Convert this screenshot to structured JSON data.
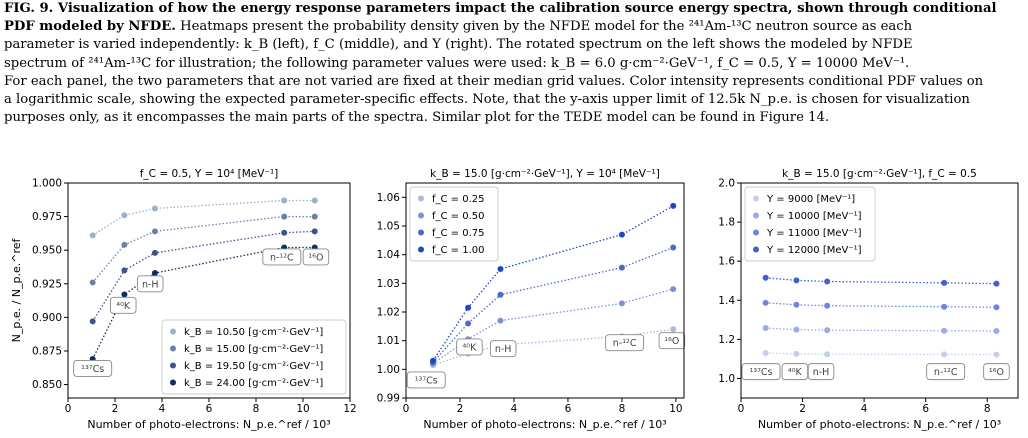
{
  "caption": {
    "line1": "FIG. 9. Visualization of how the energy response parameters impact the calibration source energy spectra, shown through conditional",
    "line2": "PDF modeled by NFDE.",
    "line2_rest": "Heatmaps present the probability density given by the NFDE model for the ²⁴¹Am-¹³C neutron source as each",
    "line3": "parameter is varied independently: k_B (left), f_C (middle), and Y (right). The rotated spectrum on the left shows the modeled by NFDE",
    "line4": "spectrum of ²⁴¹Am-¹³C for illustration; the following parameter values were used: k_B = 6.0 g·cm⁻²·GeV⁻¹, f_C = 0.5, Y = 10000 MeV⁻¹.",
    "line5": "For each panel, the two parameters that are not varied are fixed at their median grid values. Color intensity represents conditional PDF values on",
    "line6": "a logarithmic scale, showing the expected parameter-specific effects. Note, that the y-axis upper limit of 12.5k N_p.e. is chosen for visualization",
    "line7": "purposes only, as it encompasses the main parts of the spectra. Similar plot for the TEDE model can be found in Figure 14."
  },
  "chart_data": [
    {
      "type": "scatter",
      "title": "f_C = 0.5, Y = 10⁴ [MeV⁻¹]",
      "xlabel": "Number of photo-electrons: N_p.e.^ref / 10³",
      "ylabel": "N_p.e. / N_p.e.^ref",
      "xlim": [
        0,
        12
      ],
      "ylim": [
        0.84,
        1.0
      ],
      "xticks": [
        "0",
        "2",
        "4",
        "6",
        "8",
        "10",
        "12"
      ],
      "yticks": [
        "0.850",
        "0.875",
        "0.900",
        "0.925",
        "0.950",
        "0.975",
        "1.000"
      ],
      "x": [
        1.05,
        2.4,
        3.7,
        9.2,
        10.5
      ],
      "source_labels": [
        "¹³⁷Cs",
        "⁴⁰K",
        "n-H",
        "n-¹²C",
        "¹⁶O"
      ],
      "legend_position": "lower-right",
      "series": [
        {
          "name": "k_B = 10.50 [g·cm⁻²·GeV⁻¹]",
          "color": "#9eb0c9",
          "values": [
            0.961,
            0.976,
            0.981,
            0.987,
            0.987
          ]
        },
        {
          "name": "k_B = 15.00 [g·cm⁻²·GeV⁻¹]",
          "color": "#6a81a9",
          "values": [
            0.926,
            0.954,
            0.964,
            0.975,
            0.975
          ]
        },
        {
          "name": "k_B = 19.50 [g·cm⁻²·GeV⁻¹]",
          "color": "#3f5588",
          "values": [
            0.897,
            0.935,
            0.948,
            0.963,
            0.964
          ]
        },
        {
          "name": "k_B = 24.00 [g·cm⁻²·GeV⁻¹]",
          "color": "#152c5c",
          "values": [
            0.869,
            0.917,
            0.933,
            0.952,
            0.952
          ]
        }
      ]
    },
    {
      "type": "scatter",
      "title": "k_B = 15.0 [g·cm⁻²·GeV⁻¹], Y = 10⁴ [MeV⁻¹]",
      "xlabel": "Number of photo-electrons: N_p.e.^ref / 10³",
      "ylabel": "",
      "xlim": [
        0,
        10.3
      ],
      "ylim": [
        0.99,
        1.065
      ],
      "xticks": [
        "0",
        "2",
        "4",
        "6",
        "8",
        "10"
      ],
      "yticks": [
        "0.99",
        "1.00",
        "1.01",
        "1.02",
        "1.03",
        "1.04",
        "1.05",
        "1.06"
      ],
      "source_labels": [
        "¹³⁷Cs",
        "⁴⁰K",
        "n-H",
        "n-¹²C",
        "¹⁶O"
      ],
      "legend_position": "upper-left",
      "series": [
        {
          "name": "f_C = 0.25",
          "color": "#aab9e0",
          "x": [
            1.0,
            2.3,
            3.5,
            8.0,
            9.9
          ],
          "values": [
            1.0015,
            1.0055,
            1.0085,
            1.0115,
            1.014
          ]
        },
        {
          "name": "f_C = 0.50",
          "color": "#7b93d3",
          "x": [
            1.0,
            2.3,
            3.5,
            8.0,
            9.9
          ],
          "values": [
            1.002,
            1.0105,
            1.017,
            1.023,
            1.028
          ]
        },
        {
          "name": "f_C = 0.75",
          "color": "#4a6cc8",
          "x": [
            1.0,
            2.3,
            3.5,
            8.0,
            9.9
          ],
          "values": [
            1.0025,
            1.016,
            1.026,
            1.0355,
            1.0425
          ]
        },
        {
          "name": "f_C = 1.00",
          "color": "#1f47c4",
          "x": [
            1.0,
            2.3,
            3.5,
            8.0,
            9.9
          ],
          "values": [
            1.003,
            1.0215,
            1.035,
            1.047,
            1.057
          ]
        }
      ]
    },
    {
      "type": "scatter",
      "title": "k_B = 15.0 [g·cm⁻²·GeV⁻¹], f_C = 0.5",
      "xlabel": "Number of photo-electrons: N_p.e.^ref / 10³",
      "ylabel": "",
      "xlim": [
        0,
        9
      ],
      "ylim": [
        0.9,
        2.0
      ],
      "xticks": [
        "0",
        "2",
        "4",
        "6",
        "8"
      ],
      "yticks": [
        "1.0",
        "1.2",
        "1.4",
        "1.6",
        "1.8",
        "2.0"
      ],
      "x": [
        0.8,
        1.8,
        2.8,
        6.6,
        8.3
      ],
      "source_labels": [
        "¹³⁷Cs",
        "⁴⁰K",
        "n-H",
        "n-¹²C",
        "¹⁶O"
      ],
      "legend_position": "upper-left",
      "series": [
        {
          "name": "Y = 9000 [MeV⁻¹]",
          "color": "#c4cef0",
          "values": [
            1.13,
            1.126,
            1.124,
            1.123,
            1.122
          ]
        },
        {
          "name": "Y = 10000 [MeV⁻¹]",
          "color": "#9aaae8",
          "values": [
            1.258,
            1.25,
            1.247,
            1.244,
            1.243
          ]
        },
        {
          "name": "Y = 11000 [MeV⁻¹]",
          "color": "#6f86e0",
          "values": [
            1.387,
            1.377,
            1.372,
            1.367,
            1.364
          ]
        },
        {
          "name": "Y = 12000 [MeV⁻¹]",
          "color": "#3e5fd6",
          "values": [
            1.515,
            1.502,
            1.496,
            1.489,
            1.485
          ]
        }
      ]
    }
  ]
}
